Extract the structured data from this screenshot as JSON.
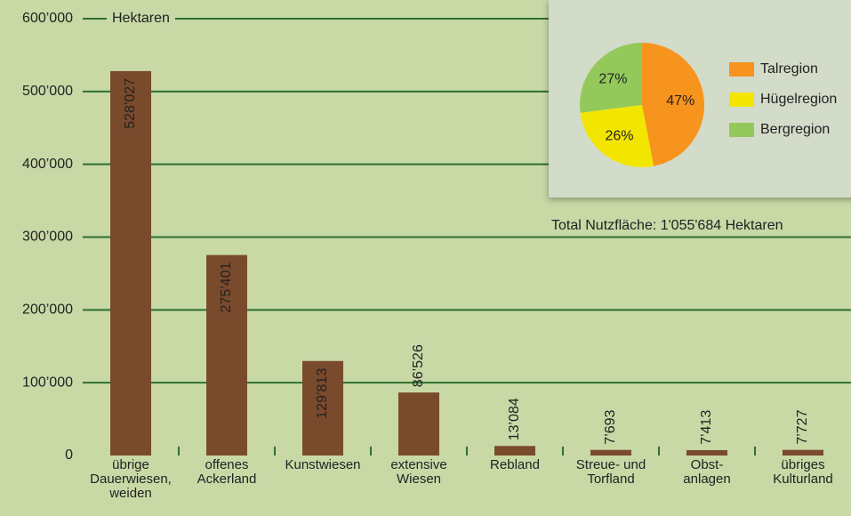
{
  "chart_data": [
    {
      "type": "bar",
      "y_label": "Hektaren",
      "categories": [
        "übrige\nDauerwiesen,\nweiden",
        "offenes\nAckerland",
        "Kunstwiesen",
        "extensive\nWiesen",
        "Rebland",
        "Streue- und\nTorfland",
        "Obst-\nanlagen",
        "übriges\nKulturland"
      ],
      "values": [
        528027,
        275401,
        129813,
        86526,
        13084,
        7693,
        7413,
        7727
      ],
      "value_labels": [
        "528’027",
        "275’401",
        "129’813",
        "86’526",
        "13’084",
        "7’693",
        "7’413",
        "7’727"
      ],
      "color": "#7a4a2c",
      "ylim": [
        0,
        600000
      ],
      "yticks": [
        0,
        {
          "value": 100000,
          "label": "100’000"
        },
        {
          "value": 200000,
          "label": "200’000"
        },
        {
          "value": 300000,
          "label": "300’000"
        },
        {
          "value": 400000,
          "label": "400’000"
        },
        {
          "value": 500000,
          "label": "500’000"
        },
        {
          "value": 600000,
          "label": "600’000"
        }
      ],
      "grid": true
    },
    {
      "type": "pie",
      "categories": [
        "Talregion",
        "Hügelregion",
        "Bergregion"
      ],
      "values": [
        47,
        26,
        27
      ],
      "value_labels": [
        "47%",
        "26%",
        "27%"
      ],
      "colors": [
        "#f7941d",
        "#f2e600",
        "#93c95b"
      ],
      "legend": "right",
      "note": "Total Nutzfläche: 1'055'684 Hektaren"
    }
  ]
}
